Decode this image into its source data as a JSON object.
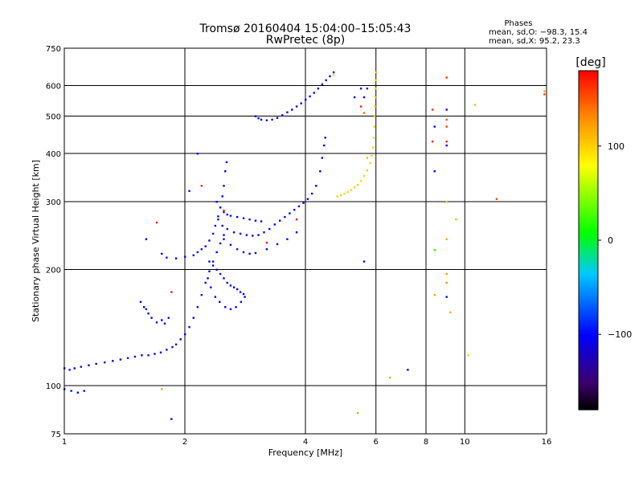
{
  "chart_data": {
    "type": "scatter",
    "title": "Tromsø 20160404 15:04:00–15:05:43",
    "subtitle": "RwPretec (8p)",
    "stats": {
      "heading": "Phases",
      "line1": "mean, sd,O: −98.3, 15.4",
      "line2": "mean, sd,X:  95.2, 23.3"
    },
    "xlabel": "Frequency [MHz]",
    "ylabel": "Stationary phase Virtual Height [km]",
    "x_scale": "log",
    "y_scale": "log",
    "xlim": [
      1,
      16
    ],
    "ylim": [
      75,
      750
    ],
    "x_ticks": [
      1,
      2,
      4,
      6,
      8,
      10,
      16
    ],
    "x_tick_labels": [
      "1",
      "2",
      "4",
      "6",
      "8",
      "10",
      "16"
    ],
    "y_ticks": [
      75,
      100,
      200,
      300,
      400,
      500,
      600,
      750
    ],
    "y_tick_labels": [
      "75",
      "100",
      "200",
      "300",
      "400",
      "500",
      "600",
      "750"
    ],
    "grid": true,
    "colorbar": {
      "label": "[deg]",
      "range": [
        -180,
        180
      ],
      "ticks": [
        -100,
        0,
        100
      ],
      "tick_labels": [
        "−100",
        "0",
        "100"
      ]
    },
    "series": [
      {
        "points": [
          [
            1.0,
            111,
            -100
          ],
          [
            1.03,
            110,
            -95
          ],
          [
            1.06,
            111,
            -105
          ],
          [
            1.1,
            112,
            -98
          ],
          [
            1.15,
            113,
            -102
          ],
          [
            1.2,
            114,
            -100
          ],
          [
            1.26,
            115,
            -96
          ],
          [
            1.32,
            116,
            -104
          ],
          [
            1.38,
            117,
            -100
          ],
          [
            1.44,
            118,
            -97
          ],
          [
            1.5,
            119,
            -103
          ],
          [
            1.56,
            120,
            -100
          ],
          [
            1.62,
            120,
            -95
          ],
          [
            1.68,
            121,
            -101
          ],
          [
            1.74,
            122,
            -99
          ],
          [
            1.8,
            124,
            -100
          ],
          [
            1.86,
            126,
            -104
          ],
          [
            1.9,
            128,
            -96
          ],
          [
            1.95,
            132,
            -100
          ],
          [
            2.0,
            136,
            -102
          ],
          [
            2.05,
            142,
            -98
          ],
          [
            2.1,
            150,
            -100
          ],
          [
            2.15,
            160,
            -103
          ],
          [
            2.2,
            172,
            -97
          ],
          [
            2.25,
            185,
            -100
          ],
          [
            2.3,
            198,
            -101
          ],
          [
            2.35,
            210,
            -99
          ],
          [
            2.4,
            222,
            -100
          ],
          [
            2.45,
            234,
            -102
          ],
          [
            2.5,
            246,
            -98
          ],
          [
            1.0,
            98,
            -100
          ],
          [
            1.04,
            97,
            -95
          ],
          [
            1.08,
            96,
            -104
          ],
          [
            1.12,
            97,
            -99
          ]
        ]
      },
      {
        "points": [
          [
            1.65,
            150,
            -100
          ],
          [
            1.7,
            146,
            -96
          ],
          [
            1.75,
            148,
            -104
          ],
          [
            1.6,
            158,
            -99
          ],
          [
            1.62,
            154,
            -101
          ],
          [
            1.78,
            145,
            -100
          ],
          [
            1.82,
            150,
            -97
          ],
          [
            1.55,
            165,
            -103
          ],
          [
            1.58,
            160,
            -100
          ]
        ]
      },
      {
        "points": [
          [
            1.75,
            220,
            -100
          ],
          [
            1.8,
            215,
            -95
          ],
          [
            1.9,
            214,
            -105
          ],
          [
            2.0,
            216,
            -98
          ],
          [
            2.1,
            218,
            -102
          ],
          [
            2.15,
            222,
            -100
          ],
          [
            2.2,
            226,
            -96
          ],
          [
            2.25,
            230,
            -104
          ],
          [
            2.3,
            238,
            -100
          ],
          [
            2.35,
            248,
            -97
          ],
          [
            2.38,
            260,
            -103
          ],
          [
            2.42,
            275,
            -100
          ],
          [
            2.45,
            290,
            -95
          ],
          [
            2.48,
            310,
            -101
          ],
          [
            2.5,
            330,
            -99
          ],
          [
            2.52,
            360,
            -100
          ],
          [
            2.54,
            380,
            -104
          ]
        ]
      },
      {
        "points": [
          [
            2.4,
            300,
            -100
          ],
          [
            2.45,
            290,
            -96
          ],
          [
            2.5,
            282,
            -104
          ],
          [
            2.55,
            278,
            -100
          ],
          [
            2.6,
            276,
            -97
          ],
          [
            2.7,
            274,
            -103
          ],
          [
            2.8,
            272,
            -100
          ],
          [
            2.9,
            270,
            -95
          ],
          [
            3.0,
            268,
            -101
          ],
          [
            3.1,
            267,
            -99
          ],
          [
            2.42,
            270,
            -100
          ],
          [
            2.48,
            260,
            -104
          ],
          [
            2.55,
            255,
            -96
          ],
          [
            2.65,
            250,
            -100
          ],
          [
            2.75,
            248,
            -102
          ],
          [
            2.85,
            246,
            -98
          ],
          [
            2.95,
            245,
            -100
          ],
          [
            3.05,
            246,
            -103
          ],
          [
            3.15,
            250,
            -97
          ],
          [
            3.25,
            255,
            -100
          ],
          [
            3.35,
            262,
            -101
          ],
          [
            3.45,
            268,
            -99
          ],
          [
            3.55,
            274,
            -100
          ],
          [
            3.65,
            280,
            -102
          ],
          [
            3.75,
            286,
            -98
          ],
          [
            3.85,
            292,
            -100
          ],
          [
            3.95,
            298,
            -103
          ],
          [
            4.05,
            305,
            -97
          ],
          [
            4.15,
            315,
            -100
          ],
          [
            4.25,
            330,
            -101
          ],
          [
            4.35,
            360,
            -99
          ],
          [
            4.4,
            390,
            -100
          ],
          [
            4.45,
            420,
            -102
          ],
          [
            4.48,
            440,
            -98
          ],
          [
            2.5,
            240,
            -100
          ],
          [
            2.6,
            232,
            -104
          ],
          [
            2.7,
            226,
            -96
          ],
          [
            2.8,
            222,
            -100
          ],
          [
            2.9,
            220,
            -102
          ],
          [
            3.0,
            221,
            -98
          ],
          [
            3.2,
            226,
            -100
          ],
          [
            3.4,
            233,
            -103
          ],
          [
            3.6,
            240,
            -97
          ],
          [
            3.8,
            250,
            -100
          ]
        ]
      },
      {
        "points": [
          [
            2.4,
            200,
            -100
          ],
          [
            2.45,
            195,
            -96
          ],
          [
            2.5,
            190,
            -104
          ],
          [
            2.55,
            185,
            -100
          ],
          [
            2.6,
            182,
            -97
          ],
          [
            2.65,
            180,
            -103
          ],
          [
            2.7,
            178,
            -100
          ],
          [
            2.75,
            175,
            -95
          ],
          [
            2.8,
            173,
            -101
          ],
          [
            2.35,
            205,
            -99
          ],
          [
            2.3,
            210,
            -100
          ],
          [
            2.28,
            190,
            -104
          ],
          [
            2.32,
            180,
            -96
          ],
          [
            2.38,
            170,
            -100
          ],
          [
            2.44,
            165,
            -102
          ],
          [
            2.52,
            160,
            -98
          ],
          [
            2.6,
            158,
            -100
          ],
          [
            2.68,
            160,
            -103
          ],
          [
            2.76,
            165,
            -97
          ],
          [
            2.82,
            170,
            -100
          ]
        ]
      },
      {
        "points": [
          [
            3.0,
            500,
            -100
          ],
          [
            3.05,
            494,
            -96
          ],
          [
            3.1,
            490,
            -104
          ],
          [
            3.2,
            488,
            -100
          ],
          [
            3.3,
            490,
            -97
          ],
          [
            3.4,
            495,
            -103
          ],
          [
            3.5,
            503,
            -100
          ],
          [
            3.6,
            512,
            -95
          ],
          [
            3.7,
            520,
            -101
          ],
          [
            3.8,
            530,
            -99
          ],
          [
            3.9,
            540,
            -100
          ],
          [
            4.0,
            552,
            -102
          ],
          [
            4.1,
            563,
            -98
          ],
          [
            4.2,
            575,
            -100
          ],
          [
            4.3,
            590,
            -103
          ],
          [
            4.4,
            605,
            -97
          ],
          [
            4.5,
            620,
            -100
          ],
          [
            4.6,
            635,
            -101
          ],
          [
            4.7,
            650,
            -99
          ]
        ]
      },
      {
        "points": [
          [
            4.8,
            310,
            100
          ],
          [
            4.9,
            312,
            105
          ],
          [
            5.0,
            315,
            95
          ],
          [
            5.1,
            318,
            102
          ],
          [
            5.2,
            322,
            98
          ],
          [
            5.3,
            327,
            100
          ],
          [
            5.4,
            332,
            104
          ],
          [
            5.5,
            340,
            96
          ],
          [
            5.6,
            350,
            100
          ],
          [
            5.7,
            362,
            103
          ],
          [
            5.8,
            378,
            97
          ],
          [
            5.85,
            395,
            100
          ],
          [
            5.9,
            415,
            102
          ],
          [
            5.92,
            440,
            98
          ],
          [
            5.94,
            470,
            100
          ],
          [
            5.95,
            500,
            104
          ],
          [
            5.96,
            530,
            96
          ],
          [
            5.97,
            560,
            100
          ],
          [
            5.98,
            590,
            103
          ],
          [
            5.99,
            620,
            97
          ],
          [
            6.0,
            650,
            100
          ],
          [
            4.7,
            640,
            100
          ]
        ]
      },
      {
        "points": [
          [
            5.6,
            210,
            -110
          ],
          [
            5.6,
            560,
            -100
          ],
          [
            5.7,
            590,
            -95
          ],
          [
            5.3,
            560,
            -100
          ],
          [
            5.5,
            590,
            -105
          ],
          [
            5.6,
            510,
            140
          ],
          [
            7.2,
            110,
            -100
          ],
          [
            8.4,
            470,
            -100
          ],
          [
            8.4,
            360,
            -105
          ],
          [
            8.4,
            225,
            20
          ],
          [
            9.0,
            420,
            -100
          ],
          [
            9.0,
            520,
            -110
          ],
          [
            9.0,
            170,
            -100
          ],
          [
            9.5,
            270,
            40
          ],
          [
            1.85,
            82,
            -110
          ],
          [
            2.15,
            400,
            -100
          ],
          [
            2.05,
            320,
            -95
          ],
          [
            1.6,
            240,
            -104
          ]
        ]
      },
      {
        "points": [
          [
            1.7,
            265,
            170
          ],
          [
            2.2,
            330,
            165
          ],
          [
            3.8,
            270,
            175
          ],
          [
            2.5,
            285,
            160
          ],
          [
            5.5,
            530,
            170
          ],
          [
            8.3,
            520,
            165
          ],
          [
            8.3,
            430,
            170
          ],
          [
            9.0,
            430,
            170
          ],
          [
            9.0,
            630,
            165
          ],
          [
            9.0,
            490,
            150
          ],
          [
            9.0,
            470,
            160
          ],
          [
            12.0,
            305,
            150
          ],
          [
            15.8,
            570,
            160
          ],
          [
            1.85,
            175,
            170
          ],
          [
            3.2,
            235,
            170
          ]
        ]
      },
      {
        "points": [
          [
            5.4,
            85,
            120
          ],
          [
            6.5,
            105,
            115
          ],
          [
            10.6,
            535,
            110
          ],
          [
            8.4,
            172,
            120
          ],
          [
            9.0,
            185,
            130
          ],
          [
            9.0,
            195,
            125
          ],
          [
            9.0,
            240,
            120
          ],
          [
            9.2,
            155,
            115
          ],
          [
            10.2,
            120,
            100
          ],
          [
            1.75,
            98,
            120
          ],
          [
            9.0,
            300,
            110
          ],
          [
            5.7,
            390,
            110
          ],
          [
            15.8,
            580,
            120
          ]
        ]
      }
    ]
  }
}
